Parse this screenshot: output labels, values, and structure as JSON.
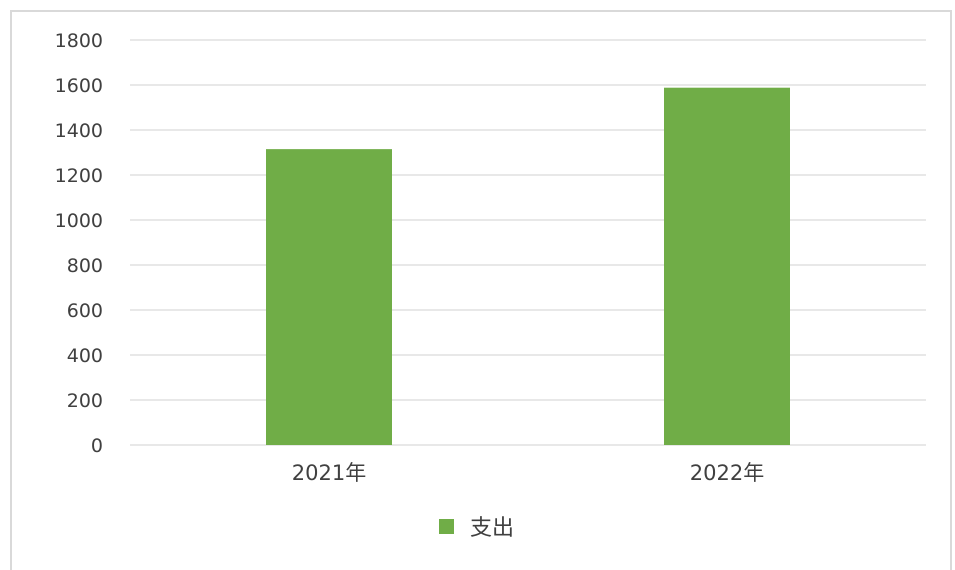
{
  "chart_data": {
    "type": "bar",
    "categories": [
      "2021年",
      "2022年"
    ],
    "series": [
      {
        "name": "支出",
        "values": [
          1315,
          1588
        ],
        "color": "#70ad47"
      }
    ],
    "ylim": [
      0,
      1800
    ],
    "yticks": [
      0,
      200,
      400,
      600,
      800,
      1000,
      1200,
      1400,
      1600,
      1800
    ],
    "grid": true,
    "legend_position": "bottom"
  },
  "colors": {
    "gridline": "#d9d9d9",
    "text": "#404040"
  }
}
